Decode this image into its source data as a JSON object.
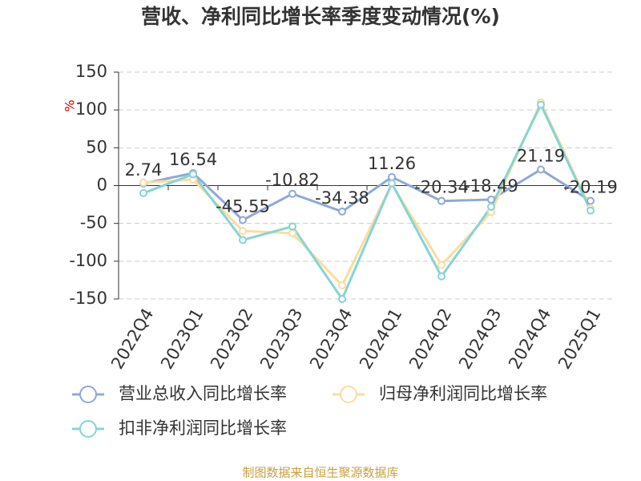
{
  "chart_data": {
    "type": "line",
    "title": "营收、净利同比增长率季度变动情况(%)",
    "y_label": "%",
    "source": "制图数据来自恒生聚源数据库",
    "categories": [
      "2022Q4",
      "2023Q1",
      "2023Q2",
      "2023Q3",
      "2023Q4",
      "2024Q1",
      "2024Q2",
      "2024Q3",
      "2024Q4",
      "2025Q1"
    ],
    "series": [
      {
        "name": "营业总收入同比增长率",
        "color": "#8fa8d8",
        "values": [
          2.74,
          16.54,
          -45.55,
          -10.82,
          -34.38,
          11.26,
          -20.34,
          -18.49,
          21.19,
          -20.19
        ]
      },
      {
        "name": "归母净利润同比增长率",
        "color": "#fbdca0",
        "values": [
          4,
          8,
          -60,
          -63,
          -132,
          2,
          -105,
          -35,
          110,
          -30
        ]
      },
      {
        "name": "扣非净利润同比增长率",
        "color": "#86d4d4",
        "values": [
          -10,
          15,
          -72,
          -54,
          -150,
          3,
          -120,
          -28,
          107,
          -33
        ]
      }
    ],
    "ylim": [
      -150,
      150
    ],
    "yticks": [
      -150,
      -100,
      -50,
      0,
      50,
      100,
      150
    ],
    "grid": true
  }
}
